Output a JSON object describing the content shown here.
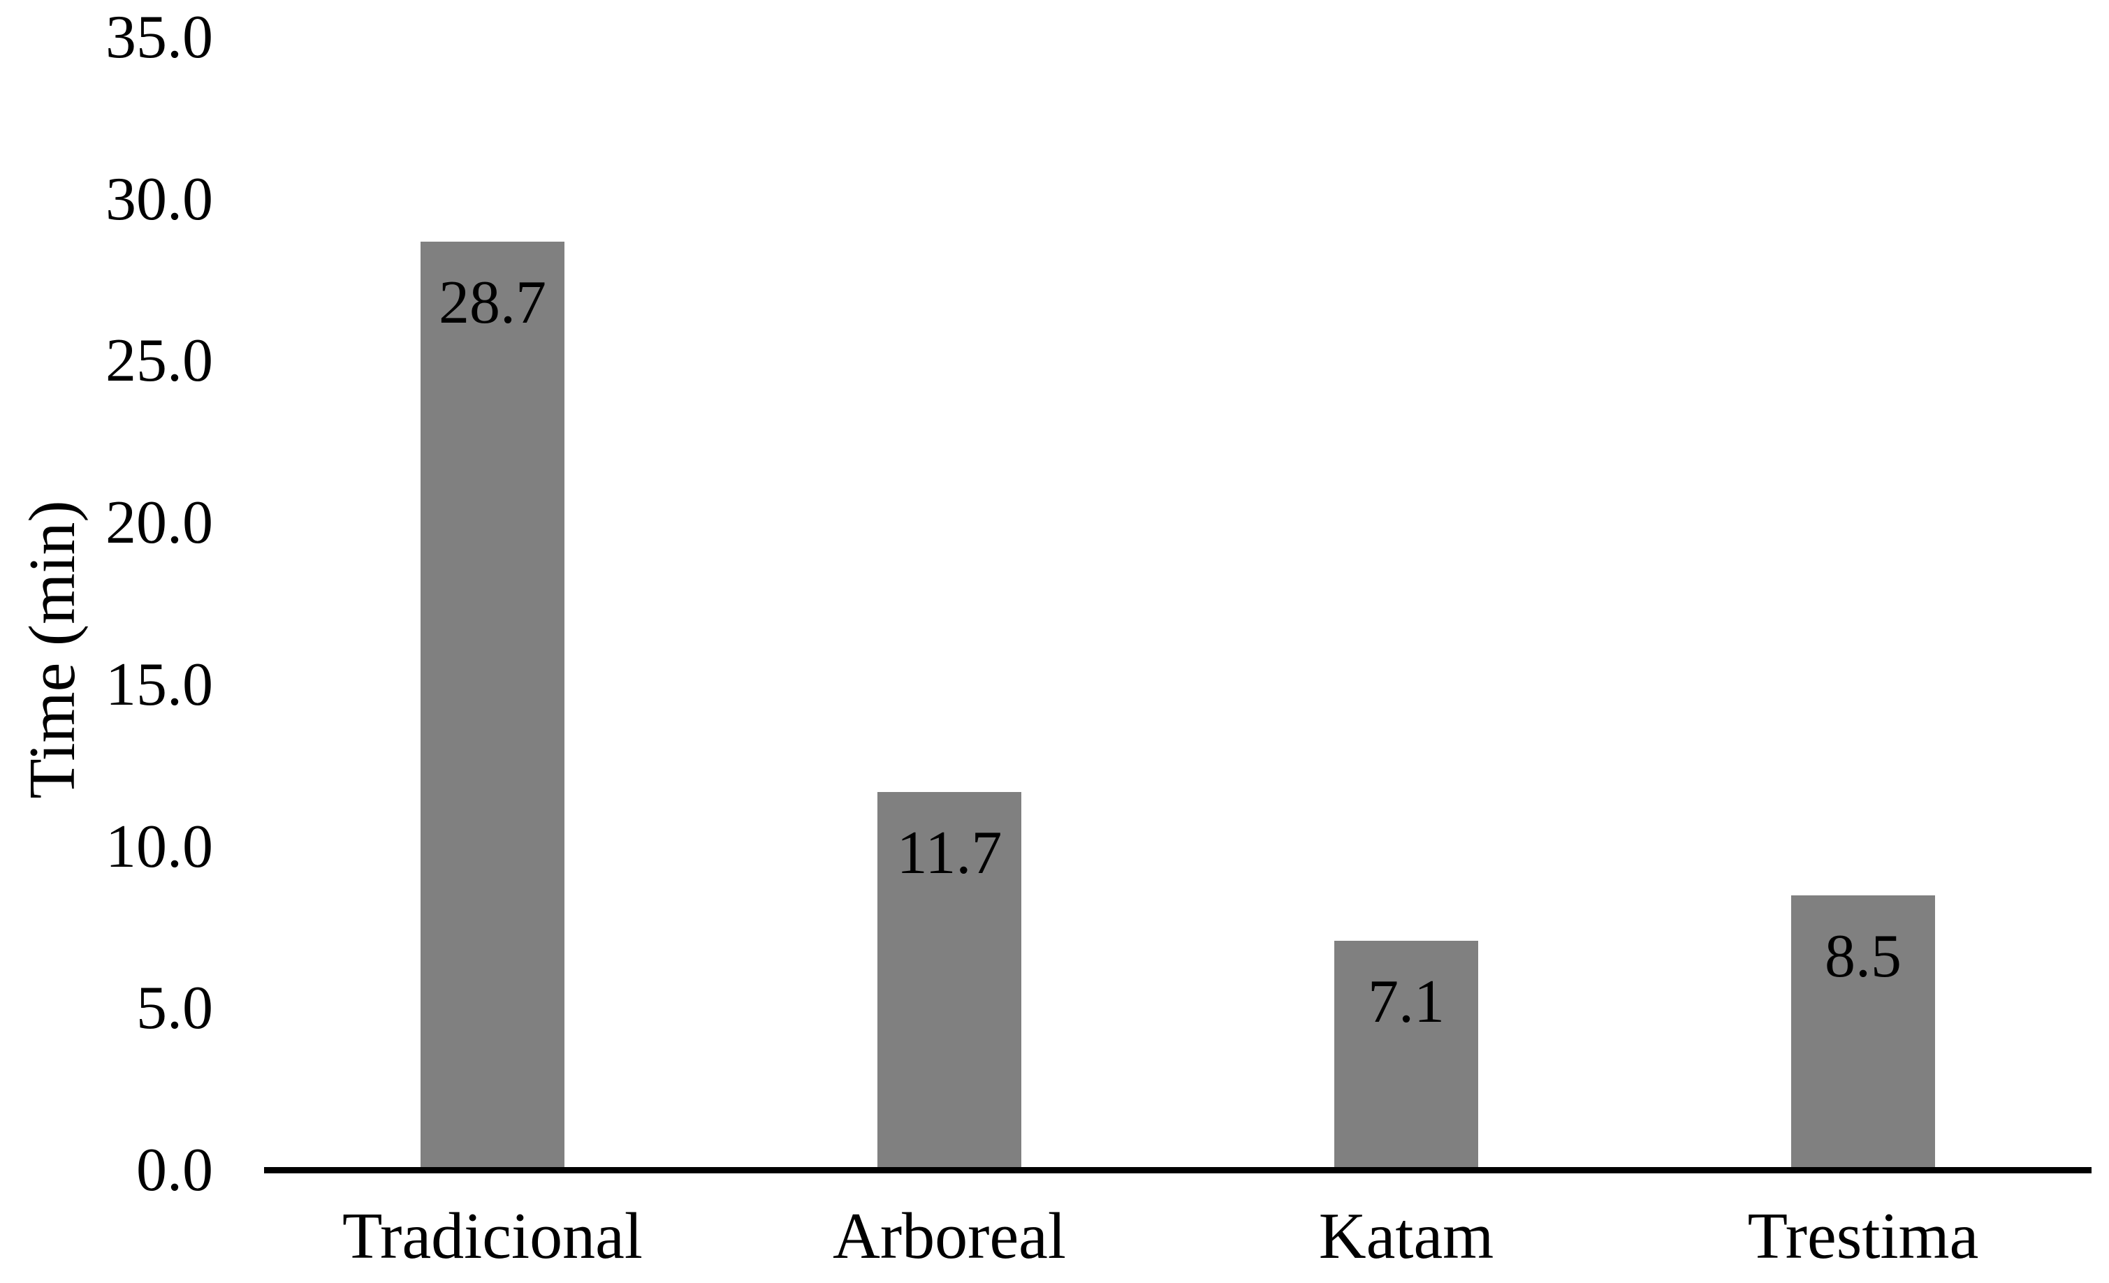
{
  "chart_data": {
    "type": "bar",
    "categories": [
      "Tradicional",
      "Arboreal",
      "Katam",
      "Trestima"
    ],
    "values": [
      28.7,
      11.7,
      7.1,
      8.5
    ],
    "data_labels": [
      "28.7",
      "11.7",
      "7.1",
      "8.5"
    ],
    "title": "",
    "xlabel": "",
    "ylabel": "Time (min)",
    "ylim": [
      0,
      35
    ],
    "ytick_step": 5,
    "ytick_labels": [
      "0.0",
      "5.0",
      "10.0",
      "15.0",
      "20.0",
      "25.0",
      "30.0",
      "35.0"
    ],
    "grid": false,
    "legend": false,
    "bar_color": "#808080",
    "axis_line_color": "#000000",
    "text_color": "#000000",
    "background_color": "#ffffff"
  }
}
